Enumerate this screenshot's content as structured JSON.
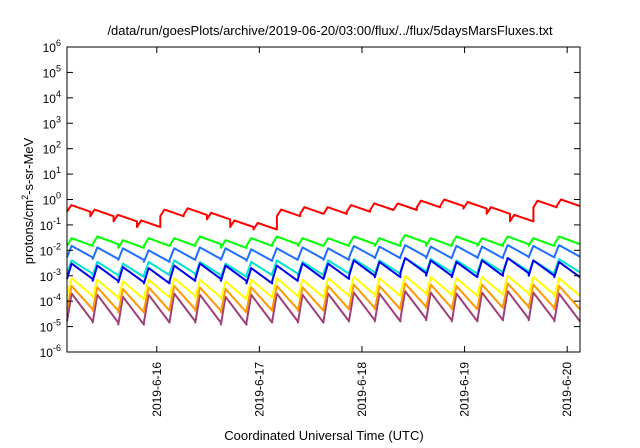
{
  "chart_data": {
    "type": "line",
    "title": "/data/run/goesPlots/archive/2019-06-20/03:00/flux/../flux/5daysMarsFluxes.txt",
    "xlabel": "Coordinated Universal Time (UTC)",
    "ylabel": "protons/cm2-s-sr-MeV",
    "ylabel_base": "protons/cm",
    "ylabel_sup": "2",
    "ylabel_rest": "-s-sr-MeV",
    "yscale": "log",
    "ylim": [
      1e-06,
      1000000.0
    ],
    "y_ticks": [
      {
        "base": "10",
        "exp": "-6"
      },
      {
        "base": "10",
        "exp": "-5"
      },
      {
        "base": "10",
        "exp": "-4"
      },
      {
        "base": "10",
        "exp": "-3"
      },
      {
        "base": "10",
        "exp": "-2"
      },
      {
        "base": "10",
        "exp": "-1"
      },
      {
        "base": "10",
        "exp": "0"
      },
      {
        "base": "10",
        "exp": "1"
      },
      {
        "base": "10",
        "exp": "2"
      },
      {
        "base": "10",
        "exp": "3"
      },
      {
        "base": "10",
        "exp": "4"
      },
      {
        "base": "10",
        "exp": "5"
      },
      {
        "base": "10",
        "exp": "6"
      }
    ],
    "xlim": [
      "2019-06-15T03:00",
      "2019-06-20T03:00"
    ],
    "x_ticks": [
      "2019-6-16",
      "2019-6-17",
      "2019-6-18",
      "2019-6-19",
      "2019-6-20"
    ],
    "grid": false,
    "legend": "none",
    "series": [
      {
        "color": "#ff0000",
        "sawtooth_peak": [
          0.6,
          0.4,
          0.25,
          0.15,
          0.4,
          0.45,
          0.3,
          0.15,
          0.12,
          0.4,
          0.5,
          0.5,
          0.6,
          0.7,
          0.7,
          0.9,
          1.0,
          0.8,
          0.5,
          0.25,
          0.9,
          1.0
        ],
        "sawtooth_drop_factor": 0.55
      },
      {
        "color": "#00ff00",
        "sawtooth_peak": [
          0.03,
          0.035,
          0.025,
          0.03,
          0.03,
          0.035,
          0.025,
          0.03,
          0.035,
          0.03,
          0.03,
          0.035,
          0.03,
          0.04,
          0.03,
          0.035,
          0.03,
          0.035,
          0.03,
          0.035
        ],
        "sawtooth_drop_factor": 0.5
      },
      {
        "color": "#1f6fff",
        "sawtooth_peak": [
          0.015,
          0.013,
          0.012,
          0.01,
          0.012,
          0.013,
          0.012,
          0.011,
          0.012,
          0.013,
          0.012,
          0.015,
          0.014,
          0.016,
          0.014,
          0.015,
          0.014,
          0.016,
          0.015,
          0.016
        ],
        "sawtooth_drop_factor": 0.35
      },
      {
        "color": "#00e5d0",
        "sawtooth_peak": [
          0.004,
          0.0035,
          0.003,
          0.0035,
          0.004,
          0.0035,
          0.003,
          0.0035,
          0.004,
          0.0035,
          0.004,
          0.0045,
          0.004,
          0.005,
          0.0045,
          0.004,
          0.0045,
          0.005,
          0.004,
          0.0045
        ],
        "sawtooth_drop_factor": 0.3
      },
      {
        "color": "#0000ee",
        "sawtooth_peak": [
          0.003,
          0.0025,
          0.0022,
          0.002,
          0.0025,
          0.003,
          0.0025,
          0.002,
          0.0025,
          0.003,
          0.003,
          0.004,
          0.0035,
          0.005,
          0.004,
          0.0035,
          0.004,
          0.005,
          0.004,
          0.0035
        ],
        "sawtooth_drop_factor": 0.25
      },
      {
        "color": "#ffff00",
        "sawtooth_peak": [
          0.0008,
          0.0007,
          0.0006,
          0.0007,
          0.0008,
          0.0007,
          0.0006,
          0.0007,
          0.0008,
          0.0007,
          0.0008,
          0.0009,
          0.0008,
          0.001,
          0.0009,
          0.0008,
          0.0009,
          0.001,
          0.0009,
          0.0008
        ],
        "sawtooth_drop_factor": 0.2
      },
      {
        "color": "#ff9900",
        "sawtooth_peak": [
          0.0004,
          0.00035,
          0.0003,
          0.00035,
          0.0004,
          0.00035,
          0.0003,
          0.00035,
          0.0004,
          0.00035,
          0.0004,
          0.00045,
          0.0004,
          0.0005,
          0.00045,
          0.0004,
          0.00045,
          0.0005,
          0.00045,
          0.0004
        ],
        "sawtooth_drop_factor": 0.12
      },
      {
        "color": "#a0407a",
        "sawtooth_peak": [
          0.0002,
          0.00018,
          0.00015,
          0.00018,
          0.0002,
          0.00018,
          0.00015,
          0.00018,
          0.0002,
          0.00018,
          0.0002,
          0.00022,
          0.0002,
          0.00025,
          0.00022,
          0.0002,
          0.00022,
          0.00025,
          0.00022,
          0.0002
        ],
        "sawtooth_drop_factor": 0.08
      }
    ]
  }
}
